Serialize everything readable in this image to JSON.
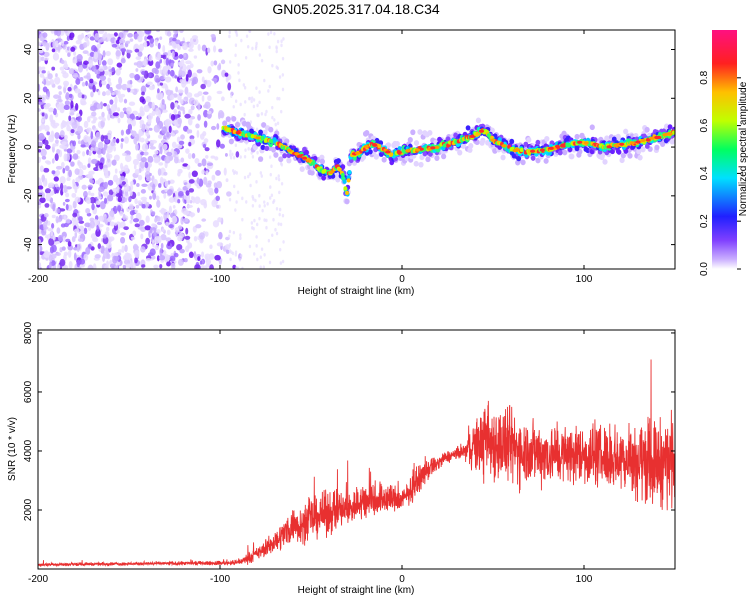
{
  "chart_data": [
    {
      "type": "heatmap",
      "title": "GN05.2025.317.04.18.C34",
      "xlabel": "Height of straight line (km)",
      "ylabel": "Frequency (Hz)",
      "xlim": [
        -200,
        150
      ],
      "ylim": [
        -50,
        48
      ],
      "xticks": [
        -200,
        -100,
        0,
        100
      ],
      "xtick_labels": [
        "-200",
        "-100",
        "0",
        "100"
      ],
      "yticks": [
        -40,
        -20,
        0,
        20,
        40
      ],
      "ytick_labels": [
        "-40",
        "-20",
        "0",
        "20",
        "40"
      ],
      "colorbar": {
        "label": "Normalized spectral amplitude",
        "range": [
          0,
          1
        ],
        "ticks": [
          0,
          0.2,
          0.4,
          0.6,
          0.8
        ],
        "tick_labels": [
          "0.0",
          "0.2",
          "0.4",
          "0.6",
          "0.8"
        ],
        "colors": [
          "#ffffff",
          "#cbb0ff",
          "#8040ff",
          "#2020ff",
          "#00e0ff",
          "#00ff60",
          "#c0ff00",
          "#ffc000",
          "#ff2020",
          "#ff1080"
        ]
      },
      "noise_region": {
        "x_range": [
          -200,
          -88
        ],
        "y_range": [
          -50,
          48
        ]
      },
      "ridge": {
        "x": [
          -100,
          -90,
          -80,
          -70,
          -60,
          -50,
          -45,
          -40,
          -35,
          -32,
          -30,
          -28,
          -25,
          -20,
          -15,
          -10,
          -5,
          0,
          10,
          20,
          30,
          40,
          45,
          50,
          55,
          60,
          70,
          80,
          90,
          100,
          110,
          120,
          130,
          140,
          150
        ],
        "y": [
          8,
          6,
          4,
          2,
          -2,
          -6,
          -9,
          -11,
          -8,
          -12,
          -20,
          -3,
          -3,
          0,
          1,
          -1,
          -3,
          -2,
          -1,
          0,
          2,
          5,
          7,
          3,
          1,
          -1,
          -2,
          -1,
          1,
          2,
          0,
          1,
          2,
          4,
          6
        ]
      }
    },
    {
      "type": "line",
      "xlabel": "Height of straight line (km)",
      "ylabel": "SNR (10 * v/v)",
      "xlim": [
        -200,
        150
      ],
      "ylim": [
        0,
        8100
      ],
      "xticks": [
        -200,
        -100,
        0,
        100
      ],
      "xtick_labels": [
        "-200",
        "-100",
        "0",
        "100"
      ],
      "yticks": [
        2000,
        4000,
        6000,
        8000
      ],
      "ytick_labels": [
        "2000",
        "4000",
        "6000",
        "8000"
      ],
      "color": "#e83030",
      "series": [
        {
          "name": "SNR",
          "x": [
            -200,
            -150,
            -100,
            -90,
            -85,
            -80,
            -75,
            -70,
            -65,
            -60,
            -55,
            -50,
            -45,
            -40,
            -35,
            -30,
            -25,
            -20,
            -15,
            -10,
            -5,
            0,
            5,
            10,
            15,
            20,
            25,
            30,
            35,
            40,
            45,
            50,
            55,
            60,
            70,
            80,
            90,
            100,
            110,
            120,
            130,
            140,
            150
          ],
          "y": [
            150,
            180,
            200,
            220,
            350,
            500,
            700,
            900,
            1200,
            1500,
            1500,
            1700,
            1800,
            1900,
            2000,
            2000,
            2200,
            2300,
            2400,
            2400,
            2400,
            2300,
            2700,
            3100,
            3400,
            3600,
            3800,
            3900,
            4000,
            4200,
            4300,
            4300,
            4200,
            4100,
            4000,
            3900,
            3900,
            3900,
            3800,
            3800,
            3700,
            3600,
            3700
          ],
          "spread": [
            80,
            80,
            100,
            120,
            250,
            300,
            400,
            500,
            700,
            900,
            900,
            1000,
            1000,
            1100,
            1000,
            900,
            900,
            1000,
            900,
            800,
            700,
            600,
            600,
            600,
            500,
            400,
            300,
            300,
            500,
            1300,
            1800,
            1900,
            1900,
            1900,
            1600,
            1500,
            1400,
            1500,
            1500,
            1600,
            1900,
            2100,
            2200
          ]
        }
      ]
    }
  ]
}
